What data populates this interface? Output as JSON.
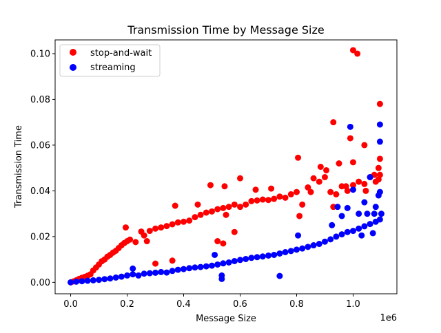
{
  "chart_data": {
    "type": "scatter",
    "title": "Transmission Time by Message Size",
    "xlabel": "Message Size",
    "ylabel": "Transmission Time",
    "x_offset_label": "1e6",
    "xlim": [
      -0.055,
      1.155
    ],
    "ylim": [
      -0.005,
      0.106
    ],
    "xticks": [
      0.0,
      0.2,
      0.4,
      0.6,
      0.8,
      1.0
    ],
    "xtick_labels": [
      "0.0",
      "0.2",
      "0.4",
      "0.6",
      "0.8",
      "1.0"
    ],
    "yticks": [
      0.0,
      0.02,
      0.04,
      0.06,
      0.08,
      0.1
    ],
    "ytick_labels": [
      "0.00",
      "0.02",
      "0.04",
      "0.06",
      "0.08",
      "0.10"
    ],
    "x_unit_multiplier": 1000000,
    "legend_position": "upper-left",
    "grid": false,
    "series": [
      {
        "name": "stop-and-wait",
        "color": "#ff0000",
        "points": [
          [
            0.0,
            0.0
          ],
          [
            0.01,
            0.0004
          ],
          [
            0.02,
            0.0009
          ],
          [
            0.03,
            0.0015
          ],
          [
            0.04,
            0.002
          ],
          [
            0.05,
            0.0024
          ],
          [
            0.06,
            0.0029
          ],
          [
            0.07,
            0.0035
          ],
          [
            0.08,
            0.0052
          ],
          [
            0.09,
            0.0065
          ],
          [
            0.1,
            0.0078
          ],
          [
            0.11,
            0.0092
          ],
          [
            0.12,
            0.01
          ],
          [
            0.13,
            0.0112
          ],
          [
            0.14,
            0.012
          ],
          [
            0.15,
            0.013
          ],
          [
            0.16,
            0.0138
          ],
          [
            0.17,
            0.015
          ],
          [
            0.18,
            0.0162
          ],
          [
            0.19,
            0.0172
          ],
          [
            0.2,
            0.018
          ],
          [
            0.21,
            0.0187
          ],
          [
            0.23,
            0.0176
          ],
          [
            0.25,
            0.0222
          ],
          [
            0.26,
            0.0205
          ],
          [
            0.27,
            0.018
          ],
          [
            0.28,
            0.0225
          ],
          [
            0.3,
            0.0235
          ],
          [
            0.32,
            0.024
          ],
          [
            0.34,
            0.0246
          ],
          [
            0.36,
            0.0254
          ],
          [
            0.38,
            0.0262
          ],
          [
            0.4,
            0.0265
          ],
          [
            0.42,
            0.027
          ],
          [
            0.44,
            0.0285
          ],
          [
            0.46,
            0.0295
          ],
          [
            0.48,
            0.0305
          ],
          [
            0.5,
            0.031
          ],
          [
            0.52,
            0.032
          ],
          [
            0.54,
            0.0325
          ],
          [
            0.56,
            0.033
          ],
          [
            0.58,
            0.034
          ],
          [
            0.6,
            0.033
          ],
          [
            0.62,
            0.034
          ],
          [
            0.64,
            0.0355
          ],
          [
            0.66,
            0.0358
          ],
          [
            0.68,
            0.0362
          ],
          [
            0.7,
            0.036
          ],
          [
            0.72,
            0.0365
          ],
          [
            0.74,
            0.0375
          ],
          [
            0.76,
            0.037
          ],
          [
            0.78,
            0.0385
          ],
          [
            0.8,
            0.0395
          ],
          [
            0.82,
            0.034
          ],
          [
            0.84,
            0.0415
          ],
          [
            0.86,
            0.0455
          ],
          [
            0.88,
            0.044
          ],
          [
            0.9,
            0.046
          ],
          [
            0.92,
            0.0395
          ],
          [
            0.94,
            0.0385
          ],
          [
            0.96,
            0.042
          ],
          [
            0.98,
            0.04
          ],
          [
            1.0,
            0.0425
          ],
          [
            1.02,
            0.044
          ],
          [
            1.04,
            0.043
          ],
          [
            1.06,
            0.046
          ],
          [
            1.08,
            0.044
          ],
          [
            1.095,
            0.047
          ],
          [
            0.195,
            0.024
          ],
          [
            0.3,
            0.0082
          ],
          [
            0.36,
            0.0095
          ],
          [
            0.37,
            0.0335
          ],
          [
            0.45,
            0.034
          ],
          [
            0.495,
            0.0425
          ],
          [
            0.545,
            0.042
          ],
          [
            0.55,
            0.0295
          ],
          [
            0.52,
            0.018
          ],
          [
            0.54,
            0.017
          ],
          [
            0.58,
            0.022
          ],
          [
            0.6,
            0.0455
          ],
          [
            0.655,
            0.0405
          ],
          [
            0.71,
            0.041
          ],
          [
            0.805,
            0.0545
          ],
          [
            0.81,
            0.029
          ],
          [
            0.85,
            0.0395
          ],
          [
            0.885,
            0.0505
          ],
          [
            0.905,
            0.049
          ],
          [
            0.93,
            0.033
          ],
          [
            0.93,
            0.07
          ],
          [
            0.95,
            0.052
          ],
          [
            0.975,
            0.042
          ],
          [
            0.99,
            0.063
          ],
          [
            1.0,
            0.0525
          ],
          [
            1.0,
            0.1015
          ],
          [
            1.015,
            0.1
          ],
          [
            1.04,
            0.06
          ],
          [
            1.045,
            0.04
          ],
          [
            1.075,
            0.047
          ],
          [
            1.09,
            0.045
          ],
          [
            1.095,
            0.078
          ],
          [
            1.095,
            0.054
          ],
          [
            1.09,
            0.05
          ]
        ]
      },
      {
        "name": "streaming",
        "color": "#0000ff",
        "points": [
          [
            0.0,
            0.0
          ],
          [
            0.02,
            0.0003
          ],
          [
            0.04,
            0.0005
          ],
          [
            0.06,
            0.0007
          ],
          [
            0.08,
            0.0009
          ],
          [
            0.1,
            0.0011
          ],
          [
            0.12,
            0.0014
          ],
          [
            0.14,
            0.0017
          ],
          [
            0.16,
            0.0021
          ],
          [
            0.18,
            0.0025
          ],
          [
            0.2,
            0.003
          ],
          [
            0.22,
            0.0035
          ],
          [
            0.24,
            0.003
          ],
          [
            0.26,
            0.0038
          ],
          [
            0.28,
            0.004
          ],
          [
            0.3,
            0.0042
          ],
          [
            0.32,
            0.0045
          ],
          [
            0.34,
            0.0043
          ],
          [
            0.36,
            0.005
          ],
          [
            0.38,
            0.0055
          ],
          [
            0.4,
            0.0058
          ],
          [
            0.42,
            0.0062
          ],
          [
            0.44,
            0.0065
          ],
          [
            0.46,
            0.0067
          ],
          [
            0.48,
            0.007
          ],
          [
            0.5,
            0.0073
          ],
          [
            0.52,
            0.0078
          ],
          [
            0.54,
            0.0083
          ],
          [
            0.56,
            0.0087
          ],
          [
            0.58,
            0.0093
          ],
          [
            0.6,
            0.0098
          ],
          [
            0.62,
            0.0102
          ],
          [
            0.64,
            0.0107
          ],
          [
            0.66,
            0.011
          ],
          [
            0.68,
            0.0113
          ],
          [
            0.7,
            0.0117
          ],
          [
            0.72,
            0.012
          ],
          [
            0.74,
            0.0126
          ],
          [
            0.76,
            0.0132
          ],
          [
            0.78,
            0.0137
          ],
          [
            0.8,
            0.0143
          ],
          [
            0.82,
            0.0148
          ],
          [
            0.84,
            0.0155
          ],
          [
            0.86,
            0.0162
          ],
          [
            0.88,
            0.0168
          ],
          [
            0.9,
            0.0178
          ],
          [
            0.92,
            0.0188
          ],
          [
            0.94,
            0.02
          ],
          [
            0.96,
            0.021
          ],
          [
            0.98,
            0.022
          ],
          [
            1.0,
            0.0225
          ],
          [
            1.02,
            0.0235
          ],
          [
            1.04,
            0.0245
          ],
          [
            1.06,
            0.0255
          ],
          [
            1.08,
            0.0265
          ],
          [
            1.095,
            0.0275
          ],
          [
            0.22,
            0.006
          ],
          [
            0.51,
            0.012
          ],
          [
            0.535,
            0.003
          ],
          [
            0.535,
            0.0015
          ],
          [
            0.74,
            0.0028
          ],
          [
            0.805,
            0.0205
          ],
          [
            0.925,
            0.025
          ],
          [
            0.945,
            0.033
          ],
          [
            0.96,
            0.029
          ],
          [
            0.98,
            0.0325
          ],
          [
            0.99,
            0.068
          ],
          [
            1.0,
            0.0405
          ],
          [
            1.02,
            0.03
          ],
          [
            1.04,
            0.035
          ],
          [
            1.05,
            0.03
          ],
          [
            1.06,
            0.046
          ],
          [
            1.075,
            0.03
          ],
          [
            1.08,
            0.033
          ],
          [
            1.09,
            0.038
          ],
          [
            1.095,
            0.0395
          ],
          [
            1.095,
            0.0615
          ],
          [
            1.095,
            0.069
          ],
          [
            1.1,
            0.03
          ],
          [
            1.07,
            0.0215
          ],
          [
            1.03,
            0.0205
          ]
        ]
      }
    ]
  }
}
